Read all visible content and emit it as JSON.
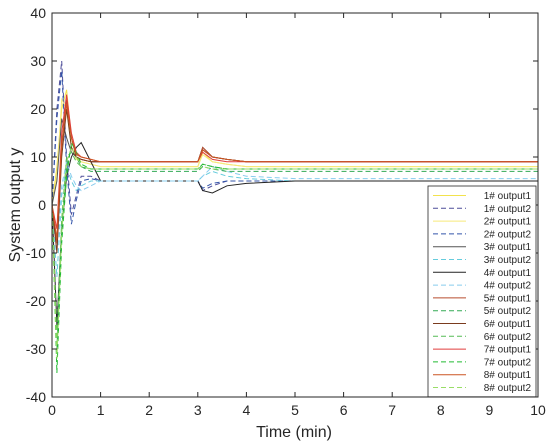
{
  "chart_data": {
    "type": "line",
    "title": "",
    "xlabel": "Time (min)",
    "ylabel": "System output y",
    "xlim": [
      0,
      10
    ],
    "ylim": [
      -40,
      40
    ],
    "xticks": [
      "0",
      "1",
      "2",
      "3",
      "4",
      "5",
      "6",
      "7",
      "8",
      "9",
      "10"
    ],
    "yticks": [
      "-40",
      "-30",
      "-20",
      "-10",
      "0",
      "10",
      "20",
      "30",
      "40"
    ],
    "grid": false,
    "legend_position": "bottom-right",
    "series": [
      {
        "name": "1# output1",
        "color": "#f2e24d",
        "dash": "solid",
        "x": [
          0,
          0.1,
          0.2,
          0.3,
          0.4,
          0.5,
          0.6,
          0.8,
          1.0,
          1.5,
          2.0,
          3.0,
          3.1,
          3.3,
          3.6,
          4.0,
          5.0,
          10.0
        ],
        "y": [
          0,
          8,
          20,
          24,
          14,
          10,
          9,
          8.5,
          8,
          8,
          8,
          8,
          11,
          9,
          8.5,
          8,
          8,
          8
        ]
      },
      {
        "name": "1# output2",
        "color": "#4d4d99",
        "dash": "dashed",
        "x": [
          0,
          0.1,
          0.2,
          0.3,
          0.4,
          0.5,
          0.6,
          0.8,
          1.0,
          1.5,
          2.0,
          3.0,
          3.1,
          3.3,
          3.6,
          4.0,
          5.0,
          10.0
        ],
        "y": [
          0,
          20,
          30,
          10,
          -2,
          2,
          6,
          6,
          5,
          5,
          5,
          5,
          3,
          4,
          5,
          5,
          5,
          5
        ]
      },
      {
        "name": "2# output1",
        "color": "#f7e97a",
        "dash": "solid",
        "x": [
          0,
          0.1,
          0.2,
          0.3,
          0.4,
          0.5,
          0.6,
          0.8,
          1.0,
          1.5,
          2.0,
          3.0,
          3.1,
          3.3,
          3.6,
          4.0,
          5.0,
          10.0
        ],
        "y": [
          0,
          6,
          22,
          20,
          12,
          9.5,
          9,
          8.5,
          8,
          8,
          8,
          8,
          10.5,
          9,
          8.5,
          8,
          8,
          8
        ]
      },
      {
        "name": "2# output2",
        "color": "#3355aa",
        "dash": "dashed",
        "x": [
          0,
          0.1,
          0.2,
          0.3,
          0.4,
          0.5,
          0.6,
          0.8,
          1.0,
          1.5,
          2.0,
          3.0,
          3.1,
          3.3,
          3.6,
          4.0,
          5.0,
          10.0
        ],
        "y": [
          0,
          18,
          28,
          8,
          -4,
          1,
          5,
          5.5,
          5,
          5,
          5,
          5,
          3.5,
          4.5,
          5,
          5,
          5,
          5
        ]
      },
      {
        "name": "3# output1",
        "color": "#555555",
        "dash": "solid",
        "x": [
          0,
          0.1,
          0.2,
          0.3,
          0.4,
          0.5,
          0.6,
          0.8,
          1.0,
          1.5,
          2.0,
          3.0,
          3.1,
          3.3,
          3.6,
          4.0,
          5.0,
          10.0
        ],
        "y": [
          0,
          5,
          18,
          14,
          11,
          10,
          9.5,
          9,
          9,
          9,
          9,
          9,
          12,
          10,
          9.5,
          9,
          9,
          9
        ]
      },
      {
        "name": "3# output2",
        "color": "#66ccdd",
        "dash": "dashed",
        "x": [
          0,
          0.1,
          0.2,
          0.3,
          0.4,
          0.5,
          0.6,
          0.8,
          1.0,
          1.5,
          2.0,
          3.0,
          3.1,
          3.3,
          3.6,
          4.0,
          5.0,
          10.0
        ],
        "y": [
          0,
          -15,
          2,
          8,
          5,
          3,
          4,
          5,
          5,
          5,
          5,
          5,
          6,
          7,
          6,
          5.5,
          5,
          5
        ]
      },
      {
        "name": "4# output1",
        "color": "#222222",
        "dash": "solid",
        "x": [
          0,
          0.1,
          0.2,
          0.3,
          0.4,
          0.5,
          0.6,
          0.8,
          1.0,
          1.5,
          2.0,
          3.0,
          3.1,
          3.3,
          3.6,
          4.0,
          5.0,
          10.0
        ],
        "y": [
          0,
          -25,
          -5,
          6,
          10,
          12,
          13,
          9,
          5,
          5,
          5,
          5,
          3,
          2.5,
          4,
          4.5,
          5,
          5
        ]
      },
      {
        "name": "4# output2",
        "color": "#88ccee",
        "dash": "dashed",
        "x": [
          0,
          0.1,
          0.2,
          0.3,
          0.4,
          0.5,
          0.6,
          0.8,
          1.0,
          1.5,
          2.0,
          3.0,
          3.1,
          3.3,
          3.6,
          4.0,
          5.0,
          10.0
        ],
        "y": [
          0,
          -10,
          4,
          9,
          6,
          4,
          3,
          4,
          5,
          5,
          5,
          5,
          6,
          8,
          7,
          6,
          5.5,
          5.5
        ]
      },
      {
        "name": "5# output1",
        "color": "#b84c2e",
        "dash": "solid",
        "x": [
          0,
          0.1,
          0.2,
          0.3,
          0.4,
          0.5,
          0.6,
          0.8,
          1.0,
          1.5,
          2.0,
          3.0,
          3.1,
          3.3,
          3.6,
          4.0,
          5.0,
          10.0
        ],
        "y": [
          0,
          -8,
          12,
          22,
          14,
          10,
          9.5,
          9,
          9,
          9,
          9,
          9,
          12,
          10,
          9.5,
          9,
          9,
          9
        ]
      },
      {
        "name": "5# output2",
        "color": "#33aa55",
        "dash": "dashed",
        "x": [
          0,
          0.1,
          0.2,
          0.3,
          0.4,
          0.5,
          0.6,
          0.8,
          1.0,
          1.5,
          2.0,
          3.0,
          3.1,
          3.3,
          3.6,
          4.0,
          5.0,
          10.0
        ],
        "y": [
          0,
          -30,
          -5,
          8,
          12,
          10,
          8,
          7,
          7,
          7,
          7,
          7,
          8,
          7.5,
          7,
          7,
          7,
          7
        ]
      },
      {
        "name": "6# output1",
        "color": "#7a3b1e",
        "dash": "solid",
        "x": [
          0,
          0.1,
          0.2,
          0.3,
          0.4,
          0.5,
          0.6,
          0.8,
          1.0,
          1.5,
          2.0,
          3.0,
          3.1,
          3.3,
          3.6,
          4.0,
          5.0,
          10.0
        ],
        "y": [
          0,
          -10,
          10,
          20,
          12,
          10,
          9.5,
          9,
          9,
          9,
          9,
          9,
          11.5,
          10,
          9.5,
          9,
          9,
          9
        ]
      },
      {
        "name": "6# output2",
        "color": "#55bb55",
        "dash": "dashed",
        "x": [
          0,
          0.1,
          0.2,
          0.3,
          0.4,
          0.5,
          0.6,
          0.8,
          1.0,
          1.5,
          2.0,
          3.0,
          3.1,
          3.3,
          3.6,
          4.0,
          5.0,
          10.0
        ],
        "y": [
          0,
          -28,
          -3,
          10,
          11,
          9,
          8,
          7.5,
          7.5,
          7.5,
          7.5,
          7.5,
          8.5,
          8,
          7.5,
          7.5,
          7.5,
          7.5
        ]
      },
      {
        "name": "7# output1",
        "color": "#e03c3c",
        "dash": "solid",
        "x": [
          0,
          0.1,
          0.2,
          0.3,
          0.4,
          0.5,
          0.6,
          0.8,
          1.0,
          1.5,
          2.0,
          3.0,
          3.1,
          3.3,
          3.6,
          4.0,
          5.0,
          10.0
        ],
        "y": [
          0,
          -5,
          15,
          23,
          15,
          11,
          10,
          9.5,
          9,
          9,
          9,
          9,
          11,
          9.5,
          9,
          9,
          9,
          9
        ]
      },
      {
        "name": "7# output2",
        "color": "#22bb33",
        "dash": "dashed",
        "x": [
          0,
          0.1,
          0.2,
          0.3,
          0.4,
          0.5,
          0.6,
          0.8,
          1.0,
          1.5,
          2.0,
          3.0,
          3.1,
          3.3,
          3.6,
          4.0,
          5.0,
          10.0
        ],
        "y": [
          0,
          -35,
          -8,
          6,
          13,
          11,
          8.5,
          7.5,
          7.5,
          7.5,
          7.5,
          7.5,
          8.5,
          8,
          7.5,
          7.5,
          7.5,
          7.5
        ]
      },
      {
        "name": "8# output1",
        "color": "#cc5522",
        "dash": "solid",
        "x": [
          0,
          0.1,
          0.2,
          0.3,
          0.4,
          0.5,
          0.6,
          0.8,
          1.0,
          1.5,
          2.0,
          3.0,
          3.1,
          3.3,
          3.6,
          4.0,
          5.0,
          10.0
        ],
        "y": [
          0,
          -7,
          13,
          21,
          14,
          10.5,
          10,
          9.5,
          9,
          9,
          9,
          9,
          11.5,
          10,
          9.5,
          9,
          9,
          9
        ]
      },
      {
        "name": "8# output2",
        "color": "#99dd66",
        "dash": "dashed",
        "x": [
          0,
          0.1,
          0.2,
          0.3,
          0.4,
          0.5,
          0.6,
          0.8,
          1.0,
          1.5,
          2.0,
          3.0,
          3.1,
          3.3,
          3.6,
          4.0,
          5.0,
          10.0
        ],
        "y": [
          0,
          -32,
          -6,
          9,
          12,
          10,
          8,
          7.5,
          7.5,
          7.5,
          7.5,
          7.5,
          8,
          7.5,
          7.5,
          7.5,
          7.5,
          7.5
        ]
      }
    ]
  }
}
